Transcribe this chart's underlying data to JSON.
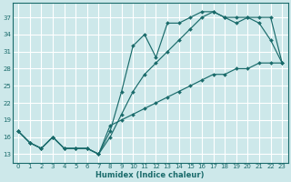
{
  "xlabel": "Humidex (Indice chaleur)",
  "xlim": [
    -0.5,
    23.5
  ],
  "ylim": [
    11.5,
    39.5
  ],
  "yticks": [
    13,
    16,
    19,
    22,
    25,
    28,
    31,
    34,
    37
  ],
  "xticks": [
    0,
    1,
    2,
    3,
    4,
    5,
    6,
    7,
    8,
    9,
    10,
    11,
    12,
    13,
    14,
    15,
    16,
    17,
    18,
    19,
    20,
    21,
    22,
    23
  ],
  "bg_color": "#cde8ea",
  "grid_color": "#ffffff",
  "line_color": "#1a6b6b",
  "series1_x": [
    0,
    1,
    2,
    3,
    4,
    5,
    6,
    7,
    8,
    9,
    10,
    11,
    12,
    13,
    14,
    15,
    16,
    17,
    18,
    19,
    20,
    21,
    22,
    23
  ],
  "series1_y": [
    17,
    15,
    14,
    16,
    14,
    14,
    14,
    13,
    17,
    24,
    32,
    34,
    30,
    36,
    36,
    37,
    38,
    38,
    37,
    37,
    37,
    36,
    33,
    29
  ],
  "series2_x": [
    0,
    1,
    2,
    3,
    4,
    5,
    6,
    7,
    8,
    9,
    10,
    11,
    12,
    13,
    14,
    15,
    16,
    17,
    18,
    19,
    20,
    21,
    22,
    23
  ],
  "series2_y": [
    17,
    15,
    14,
    16,
    14,
    14,
    14,
    13,
    16,
    20,
    24,
    27,
    29,
    31,
    33,
    35,
    37,
    38,
    37,
    36,
    37,
    37,
    37,
    29
  ],
  "series3_x": [
    0,
    1,
    2,
    3,
    4,
    5,
    6,
    7,
    8,
    9,
    10,
    11,
    12,
    13,
    14,
    15,
    16,
    17,
    18,
    19,
    20,
    21,
    22,
    23
  ],
  "series3_y": [
    17,
    15,
    14,
    16,
    14,
    14,
    14,
    13,
    18,
    19,
    20,
    21,
    22,
    23,
    24,
    25,
    26,
    27,
    27,
    28,
    28,
    29,
    29,
    29
  ]
}
